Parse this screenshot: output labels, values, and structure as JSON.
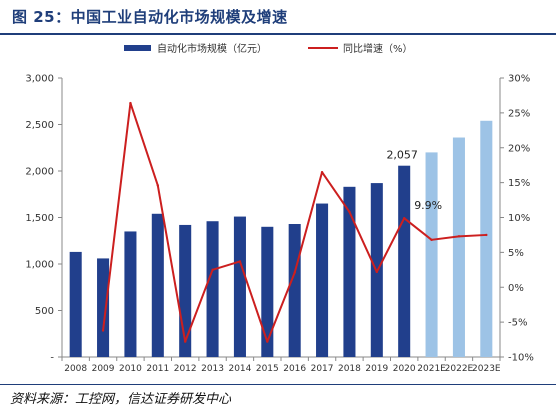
{
  "header": {
    "title": "图 25：中国工业自动化市场规模及增速"
  },
  "footer": {
    "source": "资料来源：工控网，信达证券研发中心"
  },
  "colors": {
    "bar_actual": "#213f8c",
    "bar_estimate": "#9dc3e6",
    "line": "#cc1f1f",
    "title": "#1f3e7a"
  },
  "chart_data": {
    "type": "bar",
    "categories": [
      "2008",
      "2009",
      "2010",
      "2011",
      "2012",
      "2013",
      "2014",
      "2015",
      "2016",
      "2017",
      "2018",
      "2019",
      "2020",
      "2021E",
      "2022E",
      "2023E"
    ],
    "series": [
      {
        "name": "自动化市场规模（亿元）",
        "type": "bar",
        "axis": "left",
        "values": [
          1130,
          1060,
          1350,
          1540,
          1420,
          1460,
          1510,
          1400,
          1430,
          1650,
          1830,
          1870,
          2057,
          2200,
          2360,
          2540
        ]
      },
      {
        "name": "同比增速（%）",
        "type": "line",
        "axis": "right",
        "values": [
          null,
          -6.2,
          26.4,
          14.6,
          -7.8,
          2.5,
          3.7,
          -7.8,
          2.1,
          16.5,
          10.8,
          2.2,
          9.9,
          6.8,
          7.3,
          7.5
        ]
      }
    ],
    "estimate_from_index": 13,
    "y_left": {
      "min": 0,
      "max": 3000,
      "ticks": [
        "-",
        "500",
        "1,000",
        "1,500",
        "2,000",
        "2,500",
        "3,000"
      ]
    },
    "y_right": {
      "min": -10,
      "max": 30,
      "ticks": [
        "-10%",
        "-5%",
        "0%",
        "5%",
        "10%",
        "15%",
        "20%",
        "25%",
        "30%"
      ]
    },
    "annotations": [
      "2,057",
      "9.9%"
    ],
    "legend_position": "top",
    "grid": false
  }
}
